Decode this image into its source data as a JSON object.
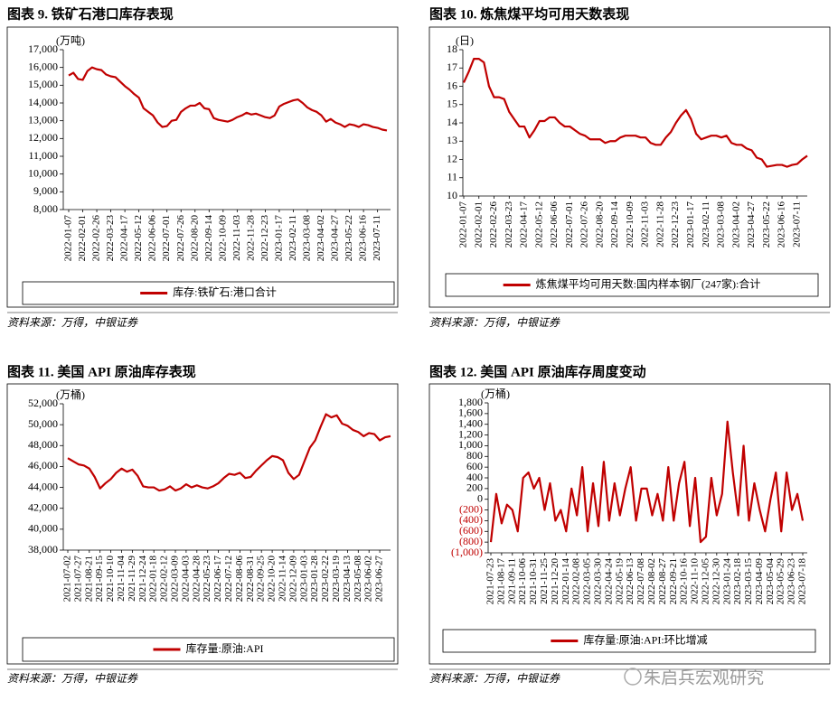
{
  "chart_data": [
    {
      "type": "line",
      "title": "图表 9. 铁矿石港口库存表现",
      "unit": "(万吨)",
      "source": "资料来源：万得，中银证券",
      "categories": [
        "2022-01-07",
        null,
        null,
        "2022-02-01",
        null,
        null,
        "2022-02-26",
        null,
        null,
        "2022-03-23",
        null,
        null,
        "2022-04-17",
        null,
        null,
        "2022-05-12",
        null,
        null,
        "2022-06-06",
        null,
        null,
        "2022-07-01",
        null,
        null,
        "2022-07-26",
        null,
        null,
        "2022-08-20",
        null,
        null,
        "2022-09-14",
        null,
        null,
        "2022-10-09",
        null,
        null,
        "2022-11-03",
        null,
        null,
        "2022-11-28",
        null,
        null,
        "2022-12-23",
        null,
        null,
        "2023-01-17",
        null,
        null,
        "2023-02-11",
        null,
        null,
        "2023-03-08",
        null,
        null,
        "2023-04-02",
        null,
        null,
        "2023-04-27",
        null,
        null,
        "2023-05-22",
        null,
        null,
        "2023-06-16",
        null,
        null,
        "2023-07-11",
        null,
        null
      ],
      "series": [
        {
          "name": "库存:铁矿石:港口合计",
          "color": "#c00000",
          "values": [
            15550,
            15700,
            15350,
            15300,
            15800,
            16000,
            15900,
            15850,
            15600,
            15500,
            15450,
            15200,
            14950,
            14750,
            14500,
            14300,
            13700,
            13500,
            13300,
            12900,
            12650,
            12700,
            13000,
            13050,
            13500,
            13700,
            13850,
            13850,
            14000,
            13700,
            13650,
            13150,
            13050,
            13000,
            12950,
            13050,
            13200,
            13300,
            13450,
            13350,
            13400,
            13300,
            13200,
            13150,
            13300,
            13800,
            13950,
            14050,
            14150,
            14200,
            14000,
            13750,
            13600,
            13500,
            13300,
            12950,
            13100,
            12900,
            12800,
            12650,
            12800,
            12750,
            12650,
            12800,
            12750,
            12650,
            12600,
            12500,
            12450
          ]
        }
      ],
      "ylim": [
        8000,
        17000
      ],
      "yticks": [
        {
          "value": 8000,
          "label": "8,000"
        },
        {
          "value": 9000,
          "label": "9,000"
        },
        {
          "value": 10000,
          "label": "10,000"
        },
        {
          "value": 11000,
          "label": "11,000"
        },
        {
          "value": 12000,
          "label": "12,000"
        },
        {
          "value": 13000,
          "label": "13,000"
        },
        {
          "value": 14000,
          "label": "14,000"
        },
        {
          "value": 15000,
          "label": "15,000"
        },
        {
          "value": 16000,
          "label": "16,000"
        },
        {
          "value": 17000,
          "label": "17,000"
        }
      ],
      "grid": false,
      "legend": "bottom"
    },
    {
      "type": "line",
      "title": "图表 10. 炼焦煤平均可用天数表现",
      "unit": "(日)",
      "source": "资料来源：万得，中银证券",
      "categories": [
        "2022-01-07",
        null,
        null,
        "2022-02-01",
        null,
        null,
        "2022-02-26",
        null,
        null,
        "2022-03-23",
        null,
        null,
        "2022-04-17",
        null,
        null,
        "2022-05-12",
        null,
        null,
        "2022-06-06",
        null,
        null,
        "2022-07-01",
        null,
        null,
        "2022-07-26",
        null,
        null,
        "2022-08-20",
        null,
        null,
        "2022-09-14",
        null,
        null,
        "2022-10-09",
        null,
        null,
        "2022-11-03",
        null,
        null,
        "2022-11-28",
        null,
        null,
        "2022-12-23",
        null,
        null,
        "2023-01-17",
        null,
        null,
        "2023-02-11",
        null,
        null,
        "2023-03-08",
        null,
        null,
        "2023-04-02",
        null,
        null,
        "2023-04-27",
        null,
        null,
        "2023-05-22",
        null,
        null,
        "2023-06-16",
        null,
        null,
        "2023-07-11",
        null,
        null
      ],
      "series": [
        {
          "name": "炼焦煤平均可用天数:国内样本钢厂(247家):合计",
          "color": "#c00000",
          "values": [
            16.2,
            16.8,
            17.5,
            17.5,
            17.3,
            16.0,
            15.4,
            15.4,
            15.3,
            14.6,
            14.2,
            13.8,
            13.8,
            13.2,
            13.6,
            14.1,
            14.1,
            14.3,
            14.3,
            14.0,
            13.8,
            13.8,
            13.6,
            13.4,
            13.3,
            13.1,
            13.1,
            13.1,
            12.9,
            13.0,
            13.0,
            13.2,
            13.3,
            13.3,
            13.3,
            13.2,
            13.2,
            12.9,
            12.8,
            12.8,
            13.2,
            13.5,
            14.0,
            14.4,
            14.7,
            14.2,
            13.4,
            13.1,
            13.2,
            13.3,
            13.3,
            13.2,
            13.3,
            12.9,
            12.8,
            12.8,
            12.6,
            12.5,
            12.1,
            12.0,
            11.6,
            11.65,
            11.7,
            11.7,
            11.6,
            11.7,
            11.75,
            12.0,
            12.2
          ]
        }
      ],
      "ylim": [
        10,
        18
      ],
      "yticks": [
        10,
        11,
        12,
        13,
        14,
        15,
        16,
        17,
        18
      ],
      "grid": false,
      "legend": "bottom"
    },
    {
      "type": "line",
      "title": "图表 11. 美国 API 原油库存表现",
      "unit": "(万桶)",
      "source": "资料来源：万得，中银证券",
      "categories": [
        "2021-07-02",
        null,
        "2021-07-27",
        null,
        "2021-08-21",
        null,
        "2021-09-15",
        null,
        "2021-10-10",
        null,
        "2021-11-04",
        null,
        "2021-11-29",
        null,
        "2021-12-24",
        null,
        "2022-01-18",
        null,
        "2022-02-12",
        null,
        "2022-03-09",
        null,
        "2022-04-03",
        null,
        "2022-04-28",
        null,
        "2022-05-23",
        null,
        "2022-06-17",
        null,
        "2022-07-12",
        null,
        "2022-08-06",
        null,
        "2022-08-31",
        null,
        "2022-09-25",
        null,
        "2022-10-20",
        null,
        "2022-11-14",
        null,
        "2022-12-09",
        null,
        "2023-01-03",
        null,
        "2023-01-28",
        null,
        "2023-02-22",
        null,
        "2023-03-19",
        null,
        "2023-04-13",
        null,
        "2023-05-08",
        null,
        "2023-06-02",
        null,
        "2023-06-27",
        null,
        null
      ],
      "series": [
        {
          "name": "库存量:原油:API",
          "color": "#c00000",
          "values": [
            46800,
            46500,
            46200,
            46100,
            45800,
            45000,
            43900,
            44400,
            44800,
            45400,
            45800,
            45500,
            45700,
            45100,
            44100,
            44000,
            44000,
            43700,
            43800,
            44100,
            43700,
            43900,
            44300,
            44000,
            44200,
            44000,
            43900,
            44100,
            44400,
            44900,
            45300,
            45200,
            45400,
            44900,
            45000,
            45600,
            46100,
            46600,
            47000,
            46900,
            46600,
            45400,
            44800,
            45200,
            46500,
            47800,
            48500,
            49800,
            51000,
            50700,
            50900,
            50100,
            49900,
            49500,
            49300,
            48900,
            49200,
            49100,
            48500,
            48800,
            48900
          ]
        }
      ],
      "ylim": [
        38000,
        52000
      ],
      "yticks": [
        {
          "value": 38000,
          "label": "38,000"
        },
        {
          "value": 40000,
          "label": "40,000"
        },
        {
          "value": 42000,
          "label": "42,000"
        },
        {
          "value": 44000,
          "label": "44,000"
        },
        {
          "value": 46000,
          "label": "46,000"
        },
        {
          "value": 48000,
          "label": "48,000"
        },
        {
          "value": 50000,
          "label": "50,000"
        },
        {
          "value": 52000,
          "label": "52,000"
        }
      ],
      "grid": false,
      "legend": "bottom"
    },
    {
      "type": "line",
      "title": "图表 12. 美国 API 原油库存周度变动",
      "unit": "(万桶)",
      "source": "资料来源：万得，中银证券",
      "watermark": "朱启兵宏观研究",
      "categories": [
        "2021-07-23",
        null,
        "2021-08-17",
        null,
        "2021-09-11",
        null,
        "2021-10-06",
        null,
        "2021-10-31",
        null,
        "2021-11-25",
        null,
        "2021-12-20",
        null,
        "2022-01-14",
        null,
        "2022-02-08",
        null,
        "2022-03-05",
        null,
        "2022-03-30",
        null,
        "2022-04-24",
        null,
        "2022-05-19",
        null,
        "2022-06-13",
        null,
        "2022-07-08",
        null,
        "2022-08-02",
        null,
        "2022-08-27",
        null,
        "2022-09-21",
        null,
        "2022-10-16",
        null,
        "2022-11-10",
        null,
        "2022-12-05",
        null,
        "2022-12-30",
        null,
        "2023-01-24",
        null,
        "2023-02-18",
        null,
        "2023-03-15",
        null,
        "2023-04-09",
        null,
        "2023-05-04",
        null,
        "2023-05-29",
        null,
        "2023-06-23",
        null,
        "2023-07-18"
      ],
      "series": [
        {
          "name": "库存量:原油:API:环比增减",
          "color": "#c00000",
          "values": [
            -800,
            100,
            -450,
            -100,
            -200,
            -600,
            400,
            500,
            200,
            400,
            -200,
            300,
            -400,
            -200,
            -600,
            200,
            -300,
            600,
            -600,
            300,
            -500,
            700,
            -400,
            300,
            -300,
            200,
            600,
            -400,
            200,
            200,
            -300,
            100,
            -400,
            600,
            -400,
            300,
            700,
            -500,
            400,
            -800,
            -700,
            400,
            -300,
            100,
            1450,
            500,
            -300,
            1000,
            -400,
            300,
            -200,
            -600,
            0,
            500,
            -600,
            500,
            -200,
            100,
            -400
          ]
        }
      ],
      "ylim": [
        -1000,
        1800
      ],
      "yticks": [
        {
          "value": -1000,
          "label": "(1,000)"
        },
        {
          "value": -800,
          "label": "(800)"
        },
        {
          "value": -600,
          "label": "(600)"
        },
        {
          "value": -400,
          "label": "(400)"
        },
        {
          "value": -200,
          "label": "(200)"
        },
        0,
        200,
        400,
        600,
        800,
        {
          "value": 1000,
          "label": "1,000"
        },
        {
          "value": 1200,
          "label": "1,200"
        },
        {
          "value": 1400,
          "label": "1,400"
        },
        {
          "value": 1600,
          "label": "1,600"
        },
        {
          "value": 1800,
          "label": "1,800"
        }
      ],
      "negative_tick_color": "#c00000",
      "grid": false,
      "legend": "bottom"
    }
  ]
}
